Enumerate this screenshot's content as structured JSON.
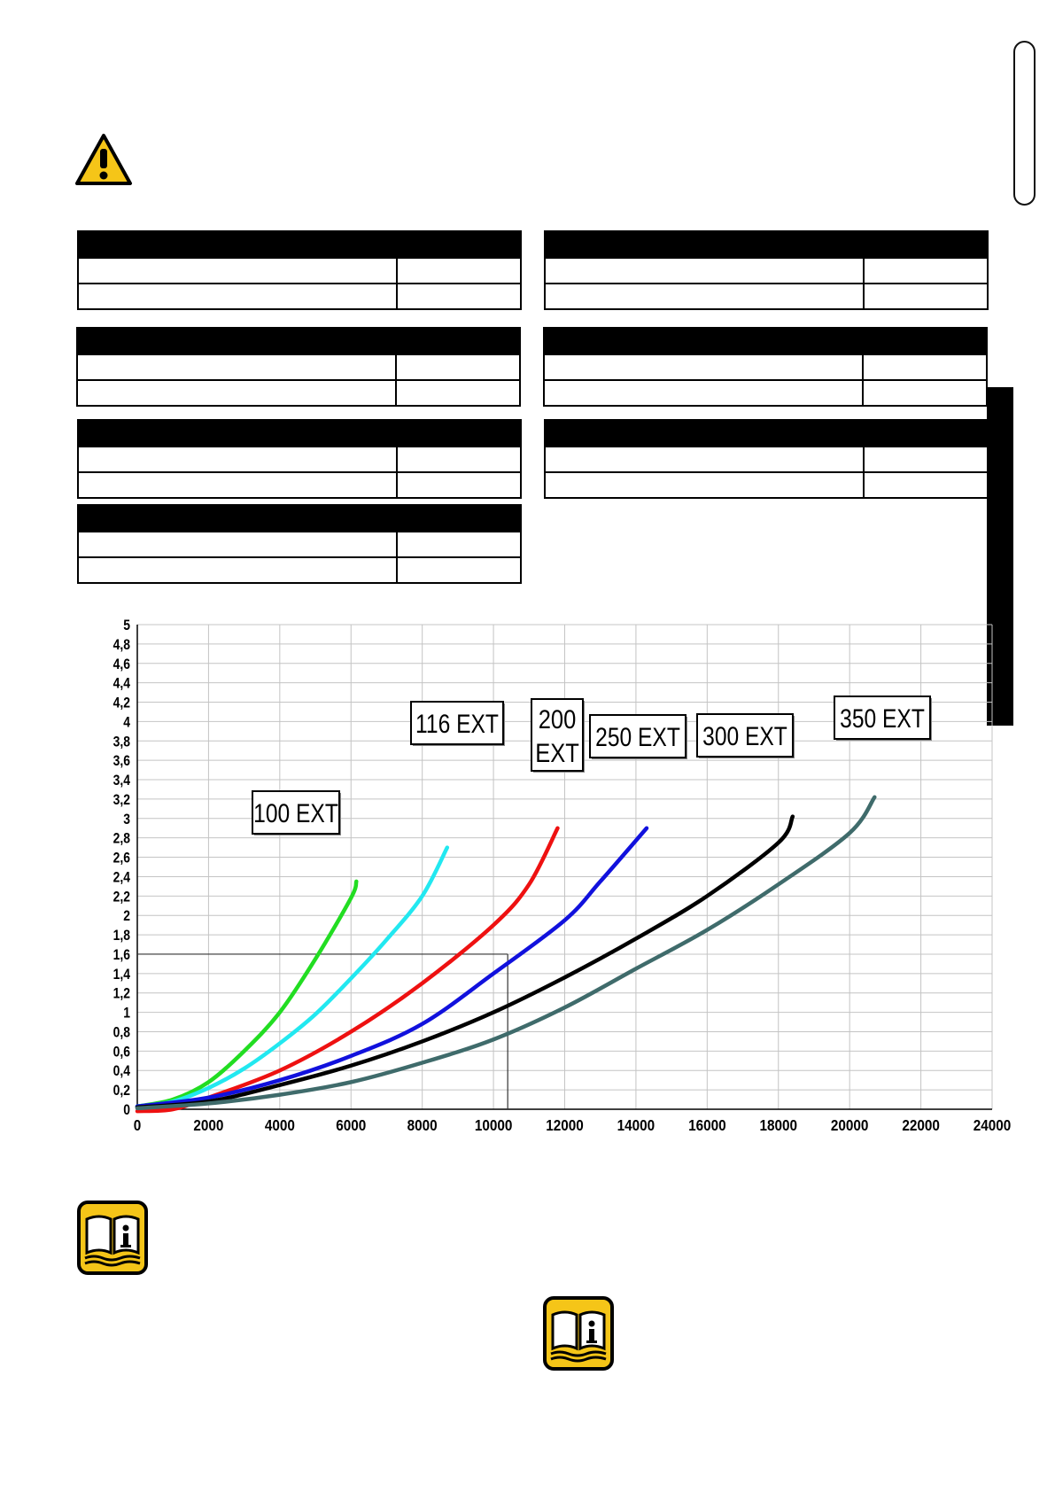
{
  "icons": {
    "warning": "warning-triangle-icon",
    "manual": "read-manual-icon"
  },
  "tables": [
    {
      "rows": 2
    },
    {
      "rows": 2
    },
    {
      "rows": 2
    },
    {
      "rows": 2
    },
    {
      "rows": 2
    },
    {
      "rows": 2
    },
    {
      "rows": 2
    }
  ],
  "chart_data": {
    "type": "line",
    "title": "",
    "xlabel": "",
    "ylabel": "",
    "xlim": [
      0,
      24000
    ],
    "ylim": [
      0,
      5
    ],
    "grid": true,
    "x_ticks": [
      "0",
      "2000",
      "4000",
      "6000",
      "8000",
      "10000",
      "12000",
      "14000",
      "16000",
      "18000",
      "20000",
      "22000",
      "24000"
    ],
    "y_ticks": [
      "0",
      "0,2",
      "0,4",
      "0,6",
      "0,8",
      "1",
      "1,2",
      "1,4",
      "1,6",
      "1,8",
      "2",
      "2,2",
      "2,4",
      "2,6",
      "2,8",
      "3",
      "3,2",
      "3,4",
      "3,6",
      "3,8",
      "4",
      "4,2",
      "4,4",
      "4,6",
      "4,8",
      "5"
    ],
    "series": [
      {
        "name": "100 EXT",
        "color": "#22dd22",
        "points": [
          [
            0,
            0.03
          ],
          [
            1000,
            0.1
          ],
          [
            2000,
            0.28
          ],
          [
            3000,
            0.6
          ],
          [
            4000,
            1.0
          ],
          [
            5000,
            1.55
          ],
          [
            6000,
            2.18
          ],
          [
            6150,
            2.35
          ]
        ]
      },
      {
        "name": "116 EXT",
        "color": "#22e8f0",
        "points": [
          [
            0,
            0.03
          ],
          [
            1000,
            0.08
          ],
          [
            2000,
            0.22
          ],
          [
            3000,
            0.42
          ],
          [
            4000,
            0.68
          ],
          [
            5000,
            0.98
          ],
          [
            6000,
            1.35
          ],
          [
            7000,
            1.75
          ],
          [
            8000,
            2.2
          ],
          [
            8700,
            2.7
          ]
        ]
      },
      {
        "name": "200 EXT",
        "color": "#ee1111",
        "points": [
          [
            0,
            -0.02
          ],
          [
            1000,
            0.0
          ],
          [
            2000,
            0.12
          ],
          [
            4000,
            0.4
          ],
          [
            6000,
            0.8
          ],
          [
            8000,
            1.3
          ],
          [
            10000,
            1.9
          ],
          [
            11000,
            2.32
          ],
          [
            11800,
            2.9
          ]
        ]
      },
      {
        "name": "250 EXT",
        "color": "#1111dd",
        "points": [
          [
            0,
            0.03
          ],
          [
            2000,
            0.12
          ],
          [
            4000,
            0.3
          ],
          [
            6000,
            0.55
          ],
          [
            8000,
            0.88
          ],
          [
            10000,
            1.4
          ],
          [
            12000,
            1.95
          ],
          [
            13000,
            2.35
          ],
          [
            14300,
            2.9
          ]
        ]
      },
      {
        "name": "300 EXT",
        "color": "#000000",
        "points": [
          [
            0,
            0.02
          ],
          [
            2000,
            0.08
          ],
          [
            4000,
            0.25
          ],
          [
            6000,
            0.45
          ],
          [
            8000,
            0.7
          ],
          [
            10000,
            1.0
          ],
          [
            12000,
            1.36
          ],
          [
            14000,
            1.76
          ],
          [
            16000,
            2.2
          ],
          [
            18000,
            2.75
          ],
          [
            18400,
            3.02
          ]
        ]
      },
      {
        "name": "350 EXT",
        "color": "#3f6b6b",
        "points": [
          [
            0,
            0.01
          ],
          [
            2000,
            0.06
          ],
          [
            4000,
            0.15
          ],
          [
            6000,
            0.28
          ],
          [
            8000,
            0.48
          ],
          [
            10000,
            0.72
          ],
          [
            12000,
            1.05
          ],
          [
            14000,
            1.45
          ],
          [
            16000,
            1.85
          ],
          [
            18000,
            2.32
          ],
          [
            20000,
            2.85
          ],
          [
            20700,
            3.22
          ]
        ]
      }
    ],
    "reference_lines": [
      {
        "kind": "horizontal",
        "y": 1.6,
        "x_from": 0,
        "x_to": 10400
      },
      {
        "kind": "vertical",
        "x": 10400,
        "y_from": 0,
        "y_to": 1.6
      }
    ]
  }
}
